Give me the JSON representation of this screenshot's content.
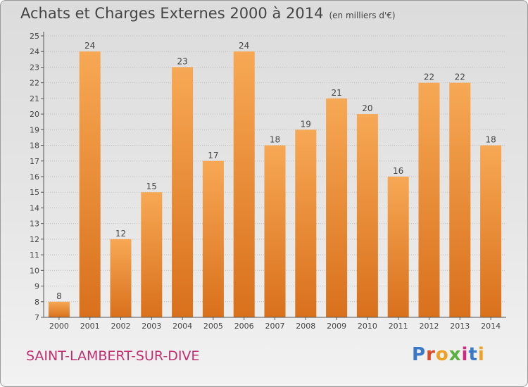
{
  "header": {
    "title": "Achats et Charges Externes 2000 à 2014",
    "unit": "(en milliers d'€)"
  },
  "footer": {
    "commune": "SAINT-LAMBERT-SUR-DIVE",
    "logo": "Proxiti",
    "logo_colors": [
      "#3a78c8",
      "#e0482a",
      "#f0a020",
      "#58b040",
      "#d02a80",
      "#3a78c8",
      "#f0a020"
    ]
  },
  "colors": {
    "bar_light": "#f7a854",
    "bar_dark": "#d9701c",
    "axis": "#555555",
    "grid": "#bdbdbd",
    "text": "#444444"
  },
  "chart_data": {
    "type": "bar",
    "categories": [
      "2000",
      "2001",
      "2002",
      "2003",
      "2004",
      "2005",
      "2006",
      "2007",
      "2008",
      "2009",
      "2010",
      "2011",
      "2012",
      "2013",
      "2014"
    ],
    "values": [
      8,
      24,
      12,
      15,
      23,
      17,
      24,
      18,
      19,
      21,
      20,
      16,
      22,
      22,
      18
    ],
    "ylim": [
      7,
      25
    ],
    "yticks": [
      7,
      8,
      9,
      10,
      11,
      12,
      13,
      14,
      15,
      16,
      17,
      18,
      19,
      20,
      21,
      22,
      23,
      24,
      25
    ],
    "grid": true,
    "legend": "none"
  }
}
